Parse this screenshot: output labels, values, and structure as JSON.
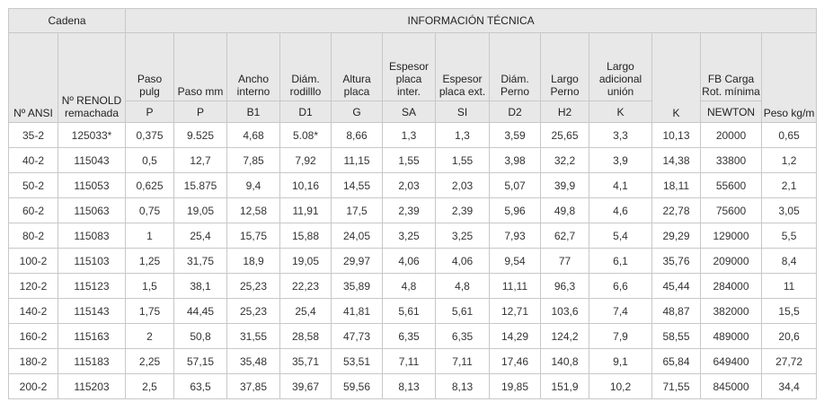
{
  "header": {
    "group_left": "Cadena",
    "group_right": "INFORMACIÓN TÉCNICA",
    "columns": [
      {
        "label": "Nº ANSI",
        "symbol": ""
      },
      {
        "label": "Nº RENOLD remachada",
        "symbol": ""
      },
      {
        "label": "Paso pulg",
        "symbol": "P"
      },
      {
        "label": "Paso mm",
        "symbol": "P"
      },
      {
        "label": "Ancho interno",
        "symbol": "B1"
      },
      {
        "label": "Diám. rodilllo",
        "symbol": "D1"
      },
      {
        "label": "Altura placa",
        "symbol": "G"
      },
      {
        "label": "Espesor placa inter.",
        "symbol": "SA"
      },
      {
        "label": "Espesor placa ext.",
        "symbol": "SI"
      },
      {
        "label": "Diám. Perno",
        "symbol": "D2"
      },
      {
        "label": "Largo Perno",
        "symbol": "H2"
      },
      {
        "label": "Largo adicional unión",
        "symbol": "K"
      },
      {
        "label": "K",
        "symbol": ""
      },
      {
        "label": "FB Carga Rot. mínima",
        "symbol": "NEWTON"
      },
      {
        "label": "Peso kg/m",
        "symbol": ""
      }
    ]
  },
  "rows": [
    [
      "35-2",
      "125033*",
      "0,375",
      "9.525",
      "4,68",
      "5.08*",
      "8,66",
      "1,3",
      "1,3",
      "3,59",
      "25,65",
      "3,3",
      "10,13",
      "20000",
      "0,65"
    ],
    [
      "40-2",
      "115043",
      "0,5",
      "12,7",
      "7,85",
      "7,92",
      "11,15",
      "1,55",
      "1,55",
      "3,98",
      "32,2",
      "3,9",
      "14,38",
      "33800",
      "1,2"
    ],
    [
      "50-2",
      "115053",
      "0,625",
      "15.875",
      "9,4",
      "10,16",
      "14,55",
      "2,03",
      "2,03",
      "5,07",
      "39,9",
      "4,1",
      "18,11",
      "55600",
      "2,1"
    ],
    [
      "60-2",
      "115063",
      "0,75",
      "19,05",
      "12,58",
      "11,91",
      "17,5",
      "2,39",
      "2,39",
      "5,96",
      "49,8",
      "4,6",
      "22,78",
      "75600",
      "3,05"
    ],
    [
      "80-2",
      "115083",
      "1",
      "25,4",
      "15,75",
      "15,88",
      "24,05",
      "3,25",
      "3,25",
      "7,93",
      "62,7",
      "5,4",
      "29,29",
      "129000",
      "5,5"
    ],
    [
      "100-2",
      "115103",
      "1,25",
      "31,75",
      "18,9",
      "19,05",
      "29,97",
      "4,06",
      "4,06",
      "9,54",
      "77",
      "6,1",
      "35,76",
      "209000",
      "8,4"
    ],
    [
      "120-2",
      "115123",
      "1,5",
      "38,1",
      "25,23",
      "22,23",
      "35,89",
      "4,8",
      "4,8",
      "11,11",
      "96,3",
      "6,6",
      "45,44",
      "284000",
      "11"
    ],
    [
      "140-2",
      "115143",
      "1,75",
      "44,45",
      "25,23",
      "25,4",
      "41,81",
      "5,61",
      "5,61",
      "12,71",
      "103,6",
      "7,4",
      "48,87",
      "382000",
      "15,5"
    ],
    [
      "160-2",
      "115163",
      "2",
      "50,8",
      "31,55",
      "28,58",
      "47,73",
      "6,35",
      "6,35",
      "14,29",
      "124,2",
      "7,9",
      "58,55",
      "489000",
      "20,6"
    ],
    [
      "180-2",
      "115183",
      "2,25",
      "57,15",
      "35,48",
      "35,71",
      "53,51",
      "7,11",
      "7,11",
      "17,46",
      "140,8",
      "9,1",
      "65,84",
      "649400",
      "27,72"
    ],
    [
      "200-2",
      "115203",
      "2,5",
      "63,5",
      "37,85",
      "39,67",
      "59,56",
      "8,13",
      "8,13",
      "19,85",
      "151,9",
      "10,2",
      "71,55",
      "845000",
      "34,4"
    ]
  ]
}
